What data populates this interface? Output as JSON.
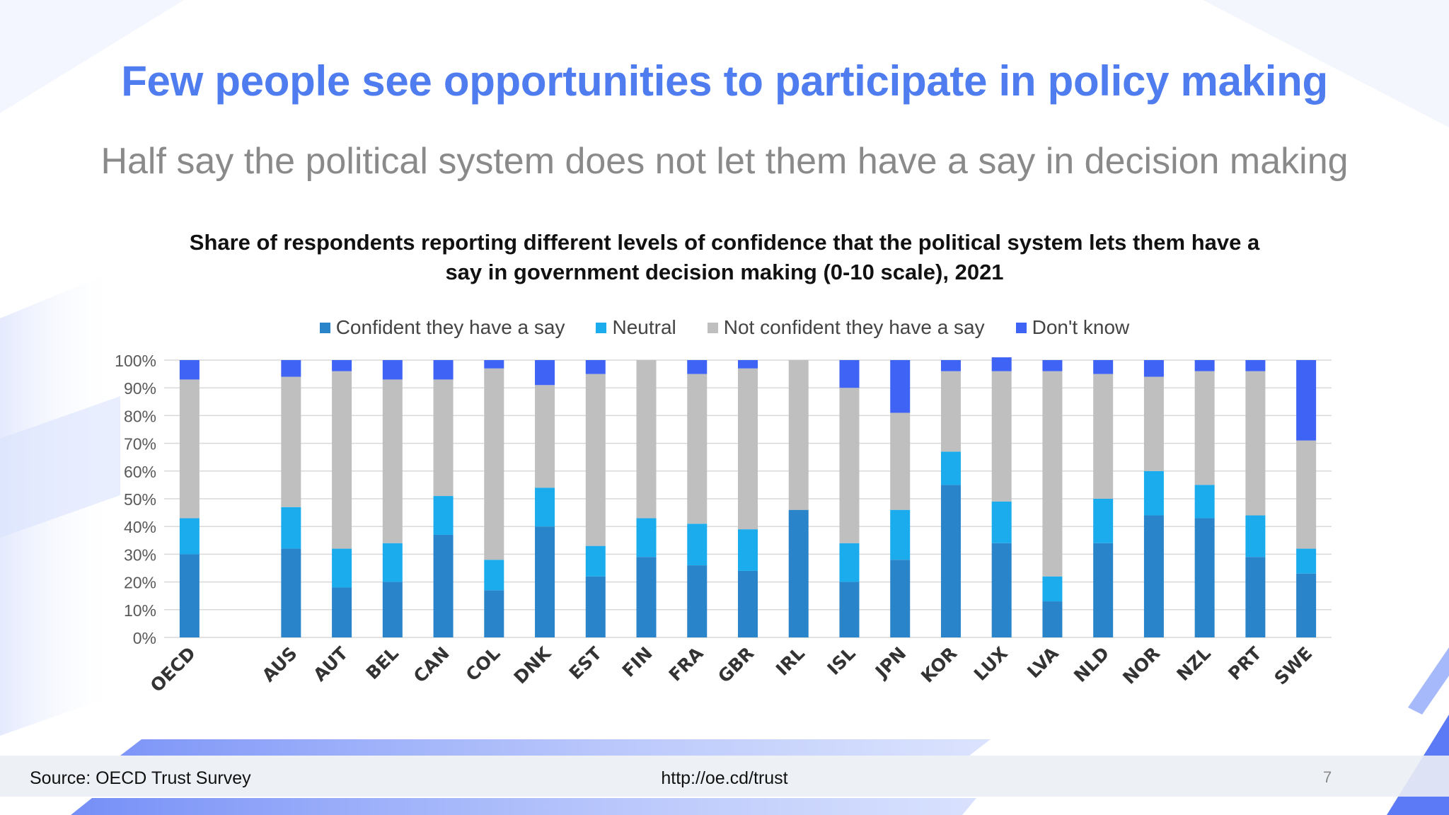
{
  "slide": {
    "headline": "Few people see opportunities to participate in policy making",
    "subheadline": "Half say the political system does not let them have a say in decision making",
    "source": "Source: OECD Trust Survey",
    "link": "http://oe.cd/trust",
    "page_number": "7"
  },
  "colors": {
    "headline": "#4f7df0",
    "confident": "#2a84c9",
    "neutral": "#1aacec",
    "not_confident": "#bfbfbf",
    "dont_know": "#3f63f4"
  },
  "chart_data": {
    "type": "bar",
    "stacked": true,
    "title": "Share of respondents reporting different levels of confidence that the political system lets them have a say in government decision making (0-10 scale), 2021",
    "legend_position": "top",
    "categories": [
      "OECD",
      "",
      "AUS",
      "AUT",
      "BEL",
      "CAN",
      "COL",
      "DNK",
      "EST",
      "FIN",
      "FRA",
      "GBR",
      "IRL",
      "ISL",
      "JPN",
      "KOR",
      "LUX",
      "LVA",
      "NLD",
      "NOR",
      "NZL",
      "PRT",
      "SWE"
    ],
    "series": [
      {
        "name": "Confident they have a say",
        "color": "#2a84c9",
        "values": [
          30,
          0,
          32,
          18,
          20,
          37,
          17,
          40,
          22,
          29,
          26,
          24,
          46,
          20,
          28,
          55,
          34,
          13,
          34,
          44,
          43,
          29,
          23
        ]
      },
      {
        "name": "Neutral",
        "color": "#1aacec",
        "values": [
          13,
          0,
          15,
          14,
          14,
          14,
          11,
          14,
          11,
          14,
          15,
          15,
          0,
          14,
          18,
          12,
          15,
          9,
          16,
          16,
          12,
          15,
          9
        ]
      },
      {
        "name": "Not confident they have a say",
        "color": "#bfbfbf",
        "values": [
          50,
          0,
          47,
          64,
          59,
          42,
          69,
          37,
          62,
          57,
          54,
          58,
          54,
          56,
          35,
          29,
          47,
          74,
          45,
          34,
          41,
          52,
          39
        ]
      },
      {
        "name": "Don't know",
        "color": "#3f63f4",
        "values": [
          7,
          0,
          6,
          4,
          7,
          7,
          3,
          9,
          5,
          0,
          5,
          3,
          0,
          10,
          19,
          4,
          5,
          4,
          5,
          6,
          4,
          4,
          29
        ]
      }
    ],
    "ylim": [
      0,
      100
    ],
    "yticks": [
      "0%",
      "10%",
      "20%",
      "30%",
      "40%",
      "50%",
      "60%",
      "70%",
      "80%",
      "90%",
      "100%"
    ],
    "grid": true
  }
}
